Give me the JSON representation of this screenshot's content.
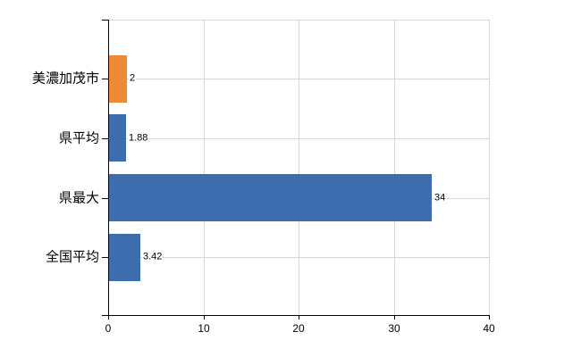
{
  "chart_data": {
    "type": "bar",
    "orientation": "horizontal",
    "title": "",
    "xlabel": "",
    "ylabel": "",
    "categories": [
      "美濃加茂市",
      "県平均",
      "県最大",
      "全国平均"
    ],
    "values": [
      2,
      1.88,
      34,
      3.42
    ],
    "value_labels": [
      "2",
      "1.88",
      "34",
      "3.42"
    ],
    "bar_colors": [
      "#EC8B33",
      "#3D6DAE",
      "#3D6DAE",
      "#3D6DAE"
    ],
    "xlim": [
      0,
      40
    ],
    "x_ticks": [
      0,
      10,
      20,
      30,
      40
    ],
    "x_tick_labels": [
      "0",
      "10",
      "20",
      "30",
      "40"
    ],
    "grid": true,
    "legend": false
  },
  "colors": {
    "highlight_bar": "#EC8B33",
    "default_bar": "#3D6DAE",
    "gridline": "#D6D6D6",
    "axis": "#000000",
    "text": "#000000",
    "background": "#FFFFFF"
  }
}
